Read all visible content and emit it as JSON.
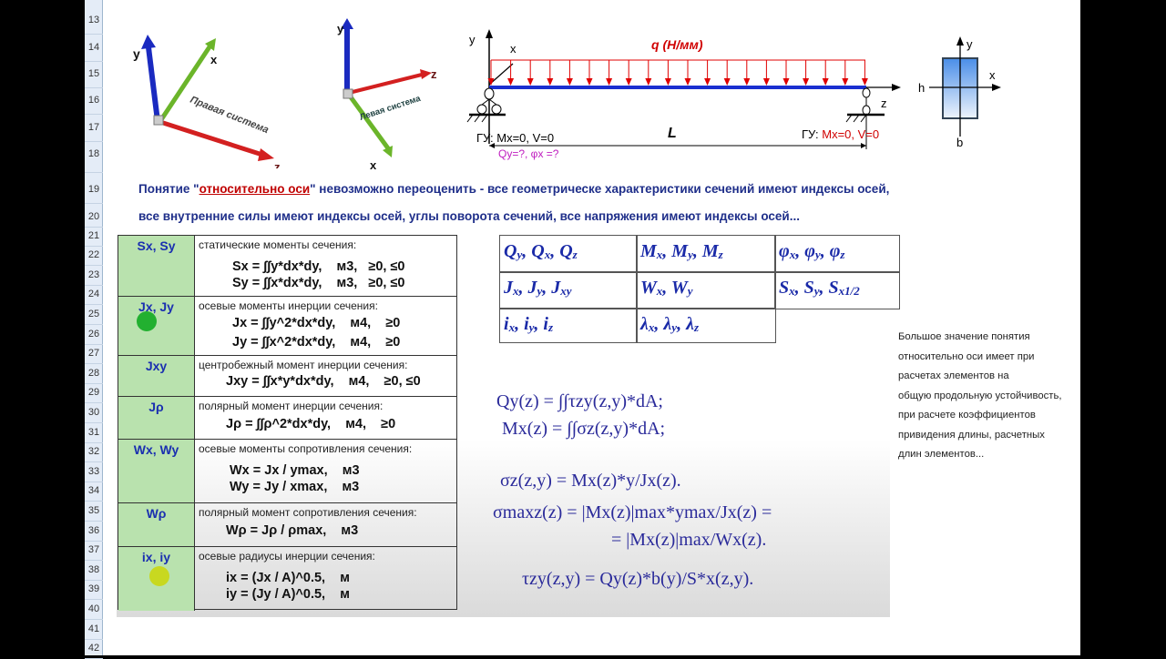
{
  "row_numbers": [
    "13",
    "14",
    "15",
    "16",
    "17",
    "18",
    "19",
    "20",
    "21",
    "22",
    "23",
    "24",
    "25",
    "26",
    "27",
    "28",
    "29",
    "30",
    "31",
    "32",
    "33",
    "34",
    "35",
    "36",
    "37",
    "38",
    "39",
    "40",
    "41",
    "42"
  ],
  "axes_images": {
    "right": {
      "label": "Правая система",
      "axis_y": "y",
      "axis_x": "x",
      "axis_z": "z"
    },
    "left": {
      "label": "Левая система",
      "axis_y": "y",
      "axis_x": "x",
      "axis_z": "z"
    }
  },
  "beam": {
    "load": "q (Н/мм)",
    "axis_y": "y",
    "axis_x": "x",
    "axis_z": "z",
    "length": "L",
    "bc_left": "ГУ: Mx=0, V=0",
    "bc_right_prefix": "ГУ: ",
    "bc_right": "Mx=0, V=0",
    "unknowns": "Qy=?, φx =?",
    "colors": {
      "load": "#e00000",
      "beam": "#1a2fd0"
    }
  },
  "section": {
    "axis_y": "y",
    "axis_x": "x",
    "h": "h",
    "b": "b"
  },
  "note": {
    "line1_pre": "Понятие \"",
    "line1_link": "относительно оси",
    "line1_post": "\" невозможно переоценить - все геометрическе характеристики сечений имеют индексы осей,",
    "line2": "все внутренние силы имеют индексы осей, углы поворота сечений, все напряжения имеют индексы осей..."
  },
  "properties": [
    {
      "symbol": "Sx, Sy",
      "desc": "статические моменты сечения:",
      "formulas": [
        "Sx = ∫∫y*dx*dy,    м3,   ≥0, ≤0",
        "Sy = ∫∫x*dx*dy,    м3,   ≥0, ≤0"
      ]
    },
    {
      "symbol": "Jx, Jy",
      "desc": "осевые моменты инерции сечения:",
      "formulas": [
        "Jx = ∫∫y^2*dx*dy,    м4,    ≥0",
        "Jy = ∫∫x^2*dx*dy,    м4,    ≥0"
      ]
    },
    {
      "symbol": "Jxy",
      "desc": "центробежный момент инерции сечения:",
      "formulas": [
        "Jxy = ∫∫x*y*dx*dy,    м4,    ≥0, ≤0"
      ]
    },
    {
      "symbol": "Jρ",
      "desc": "полярный момент инерции сечения:",
      "formulas": [
        "Jρ = ∫∫ρ^2*dx*dy,    м4,    ≥0"
      ]
    },
    {
      "symbol": "Wx, Wy",
      "desc": "осевые моменты сопротивления сечения:",
      "formulas": [
        "Wx = Jx / ymax,    м3",
        "Wy = Jy / xmax,    м3"
      ]
    },
    {
      "symbol": "Wρ",
      "desc": "полярный момент сопротивления сечения:",
      "formulas": [
        "Wρ = Jρ / ρmax,    м3"
      ]
    },
    {
      "symbol": "ix, iy",
      "desc": "осевые радиусы инерции сечения:",
      "formulas": [
        "ix = (Jx / A)^0.5,    м",
        "iy = (Jy / A)^0.5,    м"
      ]
    }
  ],
  "symbols_table": [
    [
      "Q|y, Q|x, Q|z",
      "M|x, M|y, M|z",
      "φ|x, φ|y, φ|z"
    ],
    [
      "J|x, J|y, J|xy",
      "W|x, W|y",
      "S|x, S|y, S|x1/2"
    ],
    [
      "i|x, i|y, i|z",
      "λ|x, λ|y, λ|z"
    ]
  ],
  "formulas": [
    "Qy(z) = ∫∫τzy(z,y)*dA;",
    "Mx(z) = ∫∫σz(z,y)*dA;",
    "σz(z,y) = Mx(z)*y/Jx(z).",
    "σmaxz(z) = |Mx(z)|max*ymax/Jx(z) =",
    "= |Mx(z)|max/Wx(z).",
    "τzy(z,y) = Qy(z)*b(y)/S*x(z,y)."
  ],
  "side_note": [
    "Большое значение понятия",
    "относительно оси имеет при",
    "расчетах элементов на",
    "общую продольную устойчивость,",
    "при расчете коэффициентов",
    "привидения длины, расчетных",
    "длин элементов..."
  ]
}
